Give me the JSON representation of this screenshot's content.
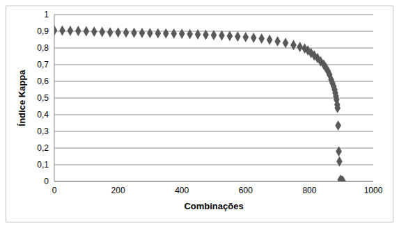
{
  "chart_data": {
    "type": "scatter",
    "x_label": "Combinações",
    "y_label": "Índice Kappa",
    "x": [
      0,
      25,
      50,
      75,
      100,
      125,
      150,
      175,
      200,
      225,
      250,
      275,
      300,
      325,
      350,
      375,
      400,
      425,
      450,
      475,
      500,
      525,
      550,
      575,
      600,
      625,
      650,
      675,
      700,
      725,
      750,
      770,
      785,
      795,
      805,
      815,
      825,
      835,
      845,
      852,
      858,
      863,
      868,
      872,
      876,
      879,
      881,
      883,
      885,
      887,
      888,
      890,
      892,
      894,
      897,
      899,
      901,
      903,
      905
    ],
    "values": [
      0.905,
      0.904,
      0.903,
      0.902,
      0.9,
      0.898,
      0.896,
      0.894,
      0.893,
      0.892,
      0.891,
      0.89,
      0.889,
      0.888,
      0.887,
      0.886,
      0.885,
      0.883,
      0.881,
      0.879,
      0.877,
      0.875,
      0.872,
      0.869,
      0.865,
      0.861,
      0.856,
      0.849,
      0.84,
      0.83,
      0.818,
      0.806,
      0.797,
      0.785,
      0.77,
      0.755,
      0.74,
      0.72,
      0.7,
      0.68,
      0.66,
      0.64,
      0.61,
      0.59,
      0.57,
      0.55,
      0.53,
      0.51,
      0.49,
      0.46,
      0.44,
      0.335,
      0.18,
      0.12,
      0.01,
      0.005,
      0.005,
      0.003,
      0.002
    ],
    "color": "#595959",
    "marker": "diamond",
    "xlim": [
      0,
      1000
    ],
    "xticks": [
      0,
      200,
      400,
      600,
      800,
      1000
    ],
    "ylim": [
      0,
      1
    ],
    "yticks": [
      0,
      {
        "value": 0.1,
        "label": "0,1"
      },
      {
        "value": 0.2,
        "label": "0,2"
      },
      {
        "value": 0.3,
        "label": "0,3"
      },
      {
        "value": 0.4,
        "label": "0,4"
      },
      {
        "value": 0.5,
        "label": "0,5"
      },
      {
        "value": 0.6,
        "label": "0,6"
      },
      {
        "value": 0.7,
        "label": "0,7"
      },
      {
        "value": 0.8,
        "label": "0,8"
      },
      {
        "value": 0.9,
        "label": "0,9"
      },
      1
    ],
    "grid": true
  }
}
